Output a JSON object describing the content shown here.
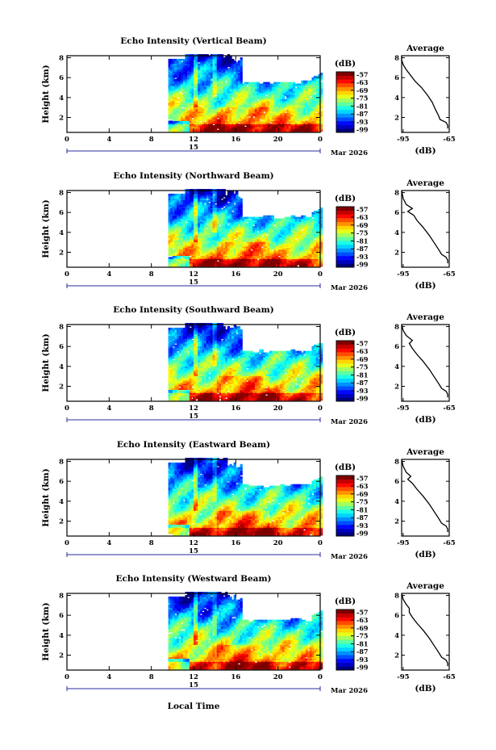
{
  "figure": {
    "bottom_xlabel": "Local Time",
    "date_label": "Mar 2026",
    "date_day": "15"
  },
  "chart_data": [
    {
      "type": "heatmap",
      "title": "Echo Intensity (Vertical Beam)",
      "xlabel": "",
      "ylabel": "Height (km)",
      "x_ticks": [
        "0",
        "4",
        "8",
        "12",
        "16",
        "20",
        "0"
      ],
      "y_ticks": [
        "2",
        "4",
        "6",
        "8"
      ],
      "xlim": [
        0,
        24
      ],
      "ylim": [
        0.5,
        8.2
      ],
      "data_start_hour": 9.6,
      "colorbar": {
        "unit": "(dB)",
        "ticks": [
          "-57",
          "-63",
          "-69",
          "-75",
          "-81",
          "-87",
          "-93",
          "-99"
        ],
        "range": [
          -101,
          -55
        ]
      },
      "average": {
        "title": "Average",
        "xlabel": "(dB)",
        "x_ticks": [
          "-95",
          "-65"
        ],
        "y_ticks": [
          "2",
          "4",
          "6",
          "8"
        ],
        "profile": [
          [
            -66,
            0.9
          ],
          [
            -66,
            1.2
          ],
          [
            -67,
            1.5
          ],
          [
            -71,
            1.8
          ],
          [
            -72,
            2.2
          ],
          [
            -74,
            2.8
          ],
          [
            -76,
            3.5
          ],
          [
            -79,
            4.2
          ],
          [
            -83,
            5.0
          ],
          [
            -87,
            5.6
          ],
          [
            -90,
            6.2
          ],
          [
            -93,
            6.8
          ],
          [
            -95,
            7.3
          ],
          [
            -96,
            7.8
          ],
          [
            -96,
            8.2
          ]
        ]
      }
    },
    {
      "type": "heatmap",
      "title": "Echo Intensity (Northward Beam)",
      "xlabel": "",
      "ylabel": "Height (km)",
      "x_ticks": [
        "0",
        "4",
        "8",
        "12",
        "16",
        "20",
        "0"
      ],
      "y_ticks": [
        "2",
        "4",
        "6",
        "8"
      ],
      "xlim": [
        0,
        24
      ],
      "ylim": [
        0.5,
        8.2
      ],
      "data_start_hour": 9.6,
      "colorbar": {
        "unit": "(dB)",
        "ticks": [
          "-57",
          "-63",
          "-69",
          "-75",
          "-81",
          "-87",
          "-93",
          "-99"
        ],
        "range": [
          -101,
          -55
        ]
      },
      "average": {
        "title": "Average",
        "xlabel": "(dB)",
        "x_ticks": [
          "-95",
          "-65"
        ],
        "y_ticks": [
          "2",
          "4",
          "6",
          "8"
        ],
        "profile": [
          [
            -66,
            0.9
          ],
          [
            -66,
            1.2
          ],
          [
            -67,
            1.5
          ],
          [
            -70,
            1.8
          ],
          [
            -72,
            2.3
          ],
          [
            -75,
            3.0
          ],
          [
            -78,
            3.7
          ],
          [
            -82,
            4.5
          ],
          [
            -86,
            5.2
          ],
          [
            -88,
            5.7
          ],
          [
            -92,
            6.1
          ],
          [
            -89,
            6.4
          ],
          [
            -93,
            6.8
          ],
          [
            -95,
            7.4
          ],
          [
            -96,
            8.2
          ]
        ]
      }
    },
    {
      "type": "heatmap",
      "title": "Echo Intensity (Southward Beam)",
      "xlabel": "",
      "ylabel": "Height (km)",
      "x_ticks": [
        "0",
        "4",
        "8",
        "12",
        "16",
        "20",
        "0"
      ],
      "y_ticks": [
        "2",
        "4",
        "6",
        "8"
      ],
      "xlim": [
        0,
        24
      ],
      "ylim": [
        0.5,
        8.2
      ],
      "data_start_hour": 9.6,
      "colorbar": {
        "unit": "(dB)",
        "ticks": [
          "-57",
          "-63",
          "-69",
          "-75",
          "-81",
          "-87",
          "-93",
          "-99"
        ],
        "range": [
          -101,
          -55
        ]
      },
      "average": {
        "title": "Average",
        "xlabel": "(dB)",
        "x_ticks": [
          "-95",
          "-65"
        ],
        "y_ticks": [
          "2",
          "4",
          "6",
          "8"
        ],
        "profile": [
          [
            -66,
            0.9
          ],
          [
            -66,
            1.2
          ],
          [
            -67,
            1.5
          ],
          [
            -70,
            1.8
          ],
          [
            -72,
            2.3
          ],
          [
            -75,
            3.0
          ],
          [
            -78,
            3.7
          ],
          [
            -82,
            4.5
          ],
          [
            -86,
            5.2
          ],
          [
            -89,
            5.8
          ],
          [
            -91,
            6.3
          ],
          [
            -89,
            6.6
          ],
          [
            -93,
            7.1
          ],
          [
            -95,
            7.6
          ],
          [
            -96,
            8.2
          ]
        ]
      }
    },
    {
      "type": "heatmap",
      "title": "Echo Intensity (Eastward Beam)",
      "xlabel": "",
      "ylabel": "Height (km)",
      "x_ticks": [
        "0",
        "4",
        "8",
        "12",
        "16",
        "20",
        "0"
      ],
      "y_ticks": [
        "2",
        "4",
        "6",
        "8"
      ],
      "xlim": [
        0,
        24
      ],
      "ylim": [
        0.5,
        8.2
      ],
      "data_start_hour": 9.6,
      "colorbar": {
        "unit": "(dB)",
        "ticks": [
          "-57",
          "-63",
          "-69",
          "-75",
          "-81",
          "-87",
          "-93",
          "-99"
        ],
        "range": [
          -101,
          -55
        ]
      },
      "average": {
        "title": "Average",
        "xlabel": "(dB)",
        "x_ticks": [
          "-95",
          "-65"
        ],
        "y_ticks": [
          "2",
          "4",
          "6",
          "8"
        ],
        "profile": [
          [
            -66,
            0.9
          ],
          [
            -66,
            1.2
          ],
          [
            -67,
            1.5
          ],
          [
            -70,
            1.8
          ],
          [
            -72,
            2.3
          ],
          [
            -75,
            3.0
          ],
          [
            -78,
            3.7
          ],
          [
            -82,
            4.5
          ],
          [
            -86,
            5.2
          ],
          [
            -89,
            5.8
          ],
          [
            -92,
            6.2
          ],
          [
            -90,
            6.5
          ],
          [
            -93,
            6.9
          ],
          [
            -95,
            7.5
          ],
          [
            -96,
            8.2
          ]
        ]
      }
    },
    {
      "type": "heatmap",
      "title": "Echo Intensity (Westward Beam)",
      "xlabel": "",
      "ylabel": "Height (km)",
      "x_ticks": [
        "0",
        "4",
        "8",
        "12",
        "16",
        "20",
        "0"
      ],
      "y_ticks": [
        "2",
        "4",
        "6",
        "8"
      ],
      "xlim": [
        0,
        24
      ],
      "ylim": [
        0.5,
        8.2
      ],
      "data_start_hour": 9.6,
      "colorbar": {
        "unit": "(dB)",
        "ticks": [
          "-57",
          "-63",
          "-69",
          "-75",
          "-81",
          "-87",
          "-93",
          "-99"
        ],
        "range": [
          -101,
          -55
        ]
      },
      "average": {
        "title": "Average",
        "xlabel": "(dB)",
        "x_ticks": [
          "-95",
          "-65"
        ],
        "y_ticks": [
          "2",
          "4",
          "6",
          "8"
        ],
        "profile": [
          [
            -66,
            0.9
          ],
          [
            -66,
            1.2
          ],
          [
            -67,
            1.5
          ],
          [
            -70,
            1.8
          ],
          [
            -72,
            2.3
          ],
          [
            -75,
            3.0
          ],
          [
            -78,
            3.7
          ],
          [
            -82,
            4.5
          ],
          [
            -86,
            5.2
          ],
          [
            -89,
            5.8
          ],
          [
            -91,
            6.3
          ],
          [
            -91,
            6.7
          ],
          [
            -93,
            7.1
          ],
          [
            -95,
            7.6
          ],
          [
            -96,
            8.2
          ]
        ]
      }
    }
  ]
}
